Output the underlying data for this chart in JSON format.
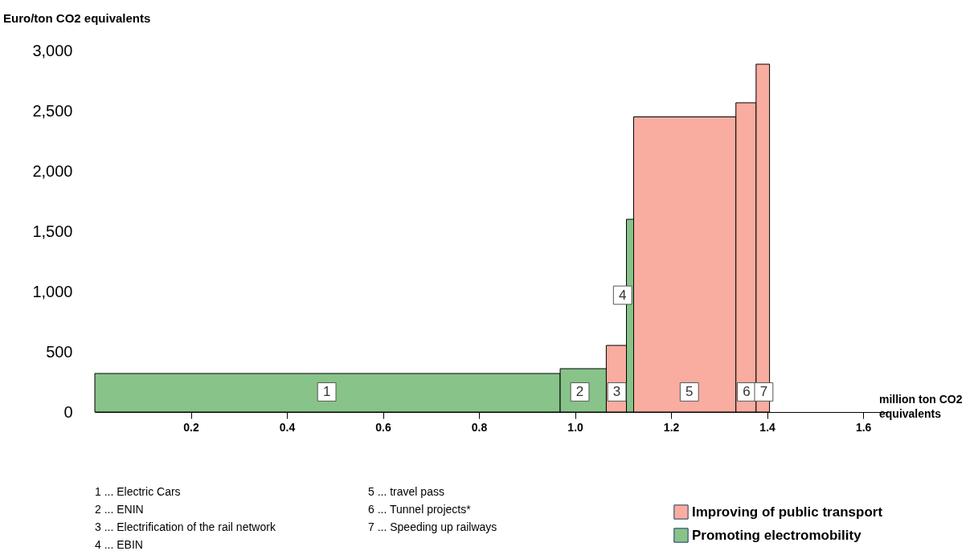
{
  "chart_data": {
    "type": "area",
    "xlabel": "million ton CO2 equivalents",
    "ylabel": "Euro/ton CO2 equivalents",
    "series": [
      {
        "name": "Improving of public transport",
        "color": "#f8ada0",
        "x": [
          1.065,
          1.107
        ],
        "values": [
          553,
          553
        ]
      },
      {
        "color": "#f8ada0",
        "x": [
          1.122,
          1.335
        ],
        "values": [
          2450,
          2450
        ]
      },
      {
        "color": "#f8ada0",
        "x": [
          1.335,
          1.377
        ],
        "values": [
          2567,
          2567
        ]
      },
      {
        "color": "#f8ada0",
        "x": [
          1.377,
          1.405
        ],
        "values": [
          2887,
          2887
        ]
      },
      {
        "name": "Promoting electromobility",
        "color": "#88c389",
        "x": [
          0,
          0.969
        ],
        "values": [
          320,
          320
        ]
      },
      {
        "color": "#88c389",
        "x": [
          0.969,
          1.065
        ],
        "values": [
          360,
          360
        ]
      },
      {
        "color": "#88c389",
        "x": [
          1.107,
          1.122
        ],
        "values": [
          1600,
          1600
        ]
      }
    ],
    "xlim": [
      0,
      1.65
    ],
    "ylim": [
      0,
      3000
    ],
    "xticks": [
      0.2,
      0.4,
      0.6,
      0.8,
      {
        "value": 1,
        "label": "1.0"
      },
      1.2,
      1.4,
      1.6
    ],
    "yticks": [
      0,
      500,
      {
        "value": 1000,
        "label": "1,000"
      },
      {
        "value": 1500,
        "label": "1,500"
      },
      {
        "value": 2000,
        "label": "2,000"
      },
      {
        "value": 2500,
        "label": "2,500"
      },
      {
        "value": 3000,
        "label": "3,000"
      }
    ],
    "grid": false,
    "legend": "bottom",
    "annotations": [
      {
        "text": "1",
        "x": 0.483,
        "y": 167
      },
      {
        "text": "2",
        "x": 1.01,
        "y": 167
      },
      {
        "text": "3",
        "x": 1.087,
        "y": 167
      },
      {
        "text": "4",
        "x": 1.099,
        "y": 970
      },
      {
        "text": "5",
        "x": 1.238,
        "y": 167
      },
      {
        "text": "6",
        "x": 1.357,
        "y": 167
      },
      {
        "text": "7",
        "x": 1.393,
        "y": 167
      },
      "1 ... Electric Cars",
      "2 ... ENIN",
      "3 ... Electrification of the rail network",
      "4 ... EBIN",
      "5 ... travel pass",
      "6 ... Tunnel projects*",
      "7 ... Speeding up railways"
    ]
  }
}
